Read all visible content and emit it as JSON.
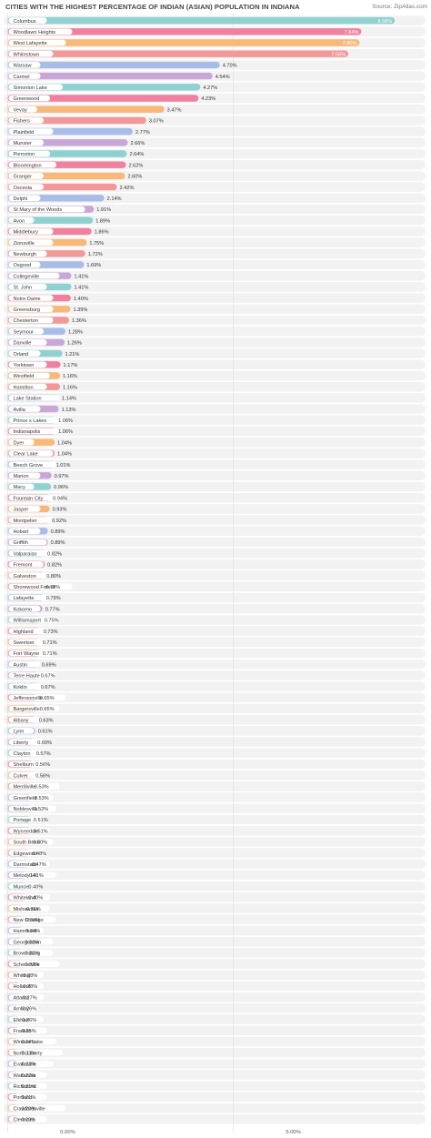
{
  "title": "CITIES WITH THE HIGHEST PERCENTAGE OF INDIAN (ASIAN) POPULATION IN INDIANA",
  "source": "Source: ZipAtlas.com",
  "chart_data": {
    "type": "bar",
    "orientation": "horizontal",
    "title": "CITIES WITH THE HIGHEST PERCENTAGE OF INDIAN (ASIAN) POPULATION IN INDIANA",
    "xlim": [
      0,
      10
    ],
    "xticks": [
      0,
      5
    ],
    "xtick_labels": [
      "0.00%",
      "5.00%"
    ],
    "grid": true,
    "legend": "none",
    "palette": [
      "#8fd0d0",
      "#f080a0",
      "#f8b878",
      "#f29898",
      "#a8bce8",
      "#c8a6d8"
    ],
    "categories": [
      "Columbus",
      "Woodlawn Heights",
      "West Lafayette",
      "Whitestown",
      "Warsaw",
      "Carmel",
      "Simonton Lake",
      "Greenwood",
      "Vevay",
      "Fishers",
      "Plainfield",
      "Munster",
      "Pierceton",
      "Bloomington",
      "Granger",
      "Osceola",
      "Delphi",
      "St Mary of the Woods",
      "Avon",
      "Middlebury",
      "Zionsville",
      "Newburgh",
      "Osgood",
      "Collegeville",
      "St. John",
      "Notre Dame",
      "Greensburg",
      "Chesterton",
      "Seymour",
      "Danville",
      "Orland",
      "Yorktown",
      "Westfield",
      "Hamilton",
      "Lake Station",
      "Avilla",
      "Prince s Lakes",
      "Indianapolis",
      "Dyer",
      "Clear Lake",
      "Beech Grove",
      "Marion",
      "Macy",
      "Fountain City",
      "Jasper",
      "Montpelier",
      "Hobart",
      "Griffith",
      "Valparaiso",
      "Fremont",
      "Galveston",
      "Shorewood Forest",
      "Lafayette",
      "Kokomo",
      "Williamsport",
      "Highland",
      "Sweetser",
      "Fort Wayne",
      "Austin",
      "Terre Haute",
      "Kirklin",
      "Jeffersonville",
      "Bargersville",
      "Albany",
      "Lynn",
      "Liberty",
      "Clayton",
      "Shelburn",
      "Culver",
      "Merrillville",
      "Greenfield",
      "Noblesville",
      "Portage",
      "Wynnedale",
      "South Bend",
      "Edgewood",
      "Darmstadt",
      "Melody Hill",
      "Muncie",
      "Whiteland",
      "Mishawaka",
      "New Chicago",
      "Hammond",
      "Georgetown",
      "Brownsburg",
      "Schererville",
      "Whiting",
      "Holland",
      "Atlanta",
      "Amboy",
      "Elkhart",
      "Franklin",
      "Winona Lake",
      "North Liberty",
      "Evansville",
      "Wakarusa",
      "Richmond",
      "Portland",
      "Crawfordsville",
      "Clermont"
    ],
    "values": [
      8.58,
      7.84,
      7.8,
      7.55,
      4.7,
      4.54,
      4.27,
      4.23,
      3.47,
      3.07,
      2.77,
      2.66,
      2.64,
      2.62,
      2.6,
      2.42,
      2.14,
      1.91,
      1.89,
      1.86,
      1.75,
      1.72,
      1.69,
      1.41,
      1.41,
      1.4,
      1.39,
      1.36,
      1.28,
      1.26,
      1.21,
      1.17,
      1.16,
      1.16,
      1.14,
      1.13,
      1.06,
      1.06,
      1.04,
      1.04,
      1.01,
      0.97,
      0.96,
      0.94,
      0.93,
      0.92,
      0.89,
      0.89,
      0.82,
      0.82,
      0.8,
      0.78,
      0.79,
      0.77,
      0.75,
      0.73,
      0.71,
      0.71,
      0.69,
      0.67,
      0.67,
      0.65,
      0.65,
      0.63,
      0.61,
      0.6,
      0.57,
      0.56,
      0.56,
      0.53,
      0.53,
      0.52,
      0.51,
      0.51,
      0.5,
      0.48,
      0.47,
      0.41,
      0.4,
      0.4,
      0.35,
      0.34,
      0.34,
      0.32,
      0.32,
      0.32,
      0.28,
      0.28,
      0.27,
      0.26,
      0.26,
      0.25,
      0.24,
      0.23,
      0.22,
      0.22,
      0.21,
      0.21,
      0.2,
      0.2
    ],
    "value_labels": [
      "8.58%",
      "7.84%",
      "7.80%",
      "7.55%",
      "4.70%",
      "4.54%",
      "4.27%",
      "4.23%",
      "3.47%",
      "3.07%",
      "2.77%",
      "2.66%",
      "2.64%",
      "2.62%",
      "2.60%",
      "2.42%",
      "2.14%",
      "1.91%",
      "1.89%",
      "1.86%",
      "1.75%",
      "1.72%",
      "1.69%",
      "1.41%",
      "1.41%",
      "1.40%",
      "1.39%",
      "1.36%",
      "1.28%",
      "1.26%",
      "1.21%",
      "1.17%",
      "1.16%",
      "1.16%",
      "1.14%",
      "1.13%",
      "1.06%",
      "1.06%",
      "1.04%",
      "1.04%",
      "1.01%",
      "0.97%",
      "0.96%",
      "0.94%",
      "0.93%",
      "0.92%",
      "0.89%",
      "0.89%",
      "0.82%",
      "0.82%",
      "0.80%",
      "0.78%",
      "0.79%",
      "0.77%",
      "0.75%",
      "0.73%",
      "0.71%",
      "0.71%",
      "0.69%",
      "0.67%",
      "0.67%",
      "0.65%",
      "0.65%",
      "0.63%",
      "0.61%",
      "0.60%",
      "0.57%",
      "0.56%",
      "0.56%",
      "0.53%",
      "0.53%",
      "0.52%",
      "0.51%",
      "0.51%",
      "0.50%",
      "0.48%",
      "0.47%",
      "0.41%",
      "0.40%",
      "0.40%",
      "0.35%",
      "0.34%",
      "0.34%",
      "0.32%",
      "0.32%",
      "0.32%",
      "0.28%",
      "0.28%",
      "0.27%",
      "0.26%",
      "0.26%",
      "0.25%",
      "0.24%",
      "0.23%",
      "0.22%",
      "0.22%",
      "0.21%",
      "0.21%",
      "0.20%",
      "0.20%"
    ]
  }
}
